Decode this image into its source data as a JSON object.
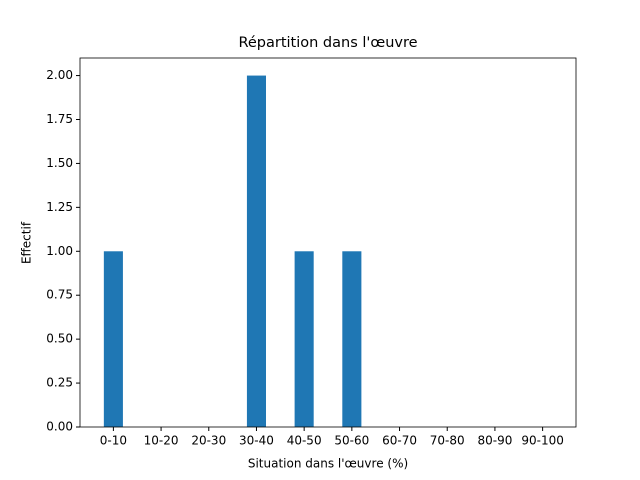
{
  "chart_data": {
    "type": "bar",
    "title": "Répartition dans l'œuvre",
    "x_label": "Situation dans l'œuvre (%)",
    "y_label": "Effectif",
    "categories": [
      "0-10",
      "10-20",
      "20-30",
      "30-40",
      "40-50",
      "50-60",
      "60-70",
      "70-80",
      "80-90",
      "90-100"
    ],
    "values": [
      1,
      0,
      0,
      2,
      1,
      1,
      0,
      0,
      0,
      0
    ],
    "color": "#1f77b4",
    "ylim": [
      0,
      2.1
    ],
    "yticks": [
      {
        "value": 0,
        "label": "0.00"
      },
      {
        "value": 0.25,
        "label": "0.25"
      },
      {
        "value": 0.5,
        "label": "0.50"
      },
      {
        "value": 0.75,
        "label": "0.75"
      },
      {
        "value": 1,
        "label": "1.00"
      },
      {
        "value": 1.25,
        "label": "1.25"
      },
      {
        "value": 1.5,
        "label": "1.50"
      },
      {
        "value": 1.75,
        "label": "1.75"
      },
      {
        "value": 2,
        "label": "2.00"
      }
    ]
  }
}
